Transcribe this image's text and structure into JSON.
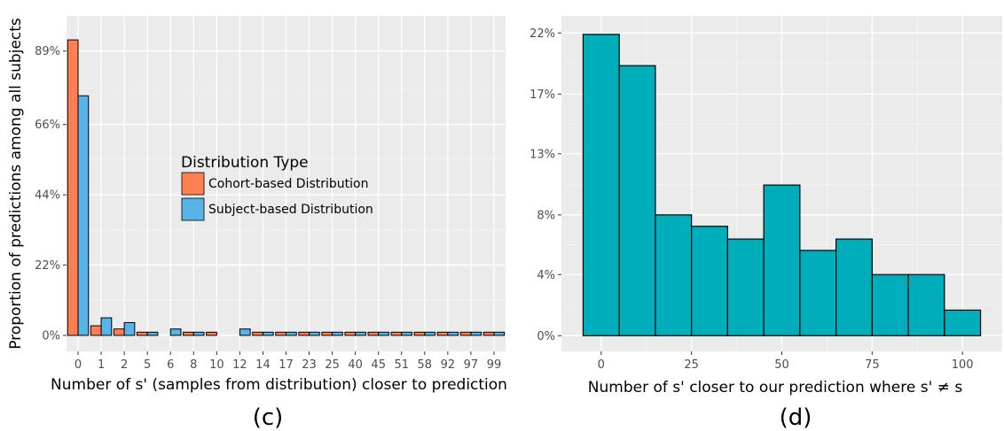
{
  "chart_data": [
    {
      "type": "bar",
      "panel_label": "(c)",
      "xlabel": "Number of s' (samples from distribution) closer to prediction",
      "ylabel": "Proportion of predictions among all subjects",
      "categories": [
        "0",
        "1",
        "2",
        "5",
        "6",
        "8",
        "10",
        "12",
        "14",
        "17",
        "23",
        "25",
        "40",
        "45",
        "51",
        "58",
        "92",
        "97",
        "99"
      ],
      "y_ticks": [
        "0%",
        "22%",
        "44%",
        "66%",
        "89%"
      ],
      "y_tick_values": [
        0,
        0.22,
        0.44,
        0.66,
        0.89
      ],
      "ylim": [
        -0.05,
        1.0
      ],
      "legend": {
        "title": "Distribution Type",
        "placement": "center"
      },
      "series": [
        {
          "name": "Cohort-based Distribution",
          "color": "#FF7F50",
          "values": [
            0.925,
            0.03,
            0.02,
            0.01,
            null,
            0.01,
            0.01,
            null,
            0.01,
            0.01,
            0.01,
            0.01,
            0.01,
            0.01,
            0.01,
            0.01,
            0.01,
            0.01,
            0.01
          ]
        },
        {
          "name": "Subject-based Distribution",
          "color": "#56B4E9",
          "values": [
            0.75,
            0.055,
            0.04,
            0.01,
            0.02,
            0.01,
            null,
            0.02,
            0.01,
            0.01,
            0.01,
            0.01,
            0.01,
            0.01,
            0.01,
            0.01,
            0.01,
            0.01,
            0.01
          ]
        }
      ]
    },
    {
      "type": "bar",
      "subtype": "histogram",
      "panel_label": "(d)",
      "xlabel": "Number of s' closer to our prediction where s' ≠ s",
      "ylabel": "",
      "color": "#00AEBB",
      "bin_width": 10,
      "bin_centers": [
        0,
        10,
        20,
        30,
        40,
        50,
        60,
        70,
        80,
        90,
        100
      ],
      "values": [
        0.212,
        0.19,
        0.085,
        0.077,
        0.068,
        0.106,
        0.06,
        0.068,
        0.043,
        0.043,
        0.018
      ],
      "x_ticks": [
        "0",
        "25",
        "50",
        "75",
        "100"
      ],
      "x_tick_values": [
        0,
        25,
        50,
        75,
        100
      ],
      "y_ticks": [
        "0%",
        "4%",
        "8%",
        "13%",
        "17%",
        "22%"
      ],
      "y_tick_values": [
        0,
        0.043,
        0.085,
        0.128,
        0.17,
        0.213
      ],
      "xlim": [
        -11,
        111
      ],
      "ylim": [
        -0.011,
        0.225
      ]
    }
  ]
}
